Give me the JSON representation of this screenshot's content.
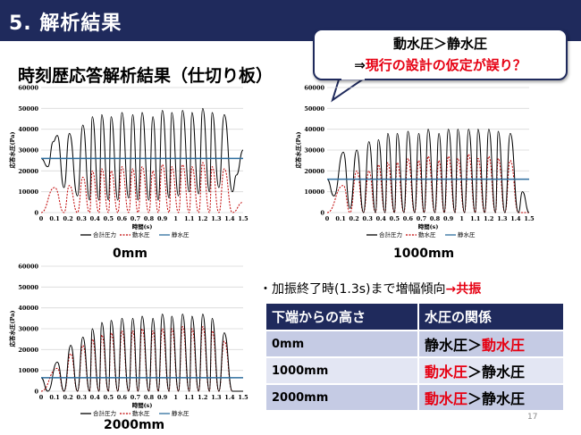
{
  "header": {
    "title": "5. 解析結果"
  },
  "subtitle": "時刻歴応答解析結果（仕切り板）",
  "callout": {
    "line1": "動水圧＞静水圧",
    "line2_arrow": "⇒",
    "line2_text": "現行の設計の仮定が誤り？"
  },
  "captions": [
    "0mm",
    "1000mm",
    "2000mm"
  ],
  "bullet": {
    "prefix": "・加振終了時(1.3s)まで増幅傾向",
    "suffix": "→共振"
  },
  "table": {
    "headers": [
      "下端からの高さ",
      "水圧の関係"
    ],
    "rows": [
      {
        "height": "0mm",
        "relation_a": "静水圧",
        "sep": "＞",
        "relation_b": "動水圧",
        "red_side": "b"
      },
      {
        "height": "1000mm",
        "relation_a": "動水圧",
        "sep": "＞",
        "relation_b": "静水圧",
        "red_side": "a"
      },
      {
        "height": "2000mm",
        "relation_a": "動水圧",
        "sep": "＞",
        "relation_b": "静水圧",
        "red_side": "a"
      }
    ]
  },
  "page_number": "17",
  "colors": {
    "total": "#000000",
    "dynamic": "#c00000",
    "static": "#2e6e9e",
    "header": "#1f2a5c"
  },
  "chart_data": [
    {
      "type": "line",
      "caption": "0mm",
      "xlabel": "時間(s)",
      "ylabel": "応答水圧(Pa)",
      "xlim": [
        0,
        1.5
      ],
      "ylim": [
        0,
        60000
      ],
      "xticks": [
        "0",
        "0.1",
        "0.2",
        "0.3",
        "0.4",
        "0.5",
        "0.6",
        "0.7",
        "0.8",
        "0.9",
        "1",
        "1.1",
        "1.2",
        "1.3",
        "1.4",
        "1.5"
      ],
      "yticks": [
        "0",
        "10000",
        "20000",
        "30000",
        "40000",
        "50000",
        "60000"
      ],
      "legend": [
        "合計圧力",
        "動水圧",
        "静水圧"
      ],
      "static": 26000,
      "total_peaks": [
        [
          0,
          26000
        ],
        [
          0.05,
          22000
        ],
        [
          0.09,
          34000
        ],
        [
          0.12,
          37000
        ],
        [
          0.17,
          12000
        ],
        [
          0.21,
          38000
        ],
        [
          0.27,
          8000
        ],
        [
          0.31,
          42000
        ],
        [
          0.36,
          6000
        ],
        [
          0.38,
          46000
        ],
        [
          0.43,
          6000
        ],
        [
          0.45,
          47000
        ],
        [
          0.5,
          6000
        ],
        [
          0.52,
          46000
        ],
        [
          0.57,
          6000
        ],
        [
          0.6,
          48000
        ],
        [
          0.65,
          7000
        ],
        [
          0.68,
          47000
        ],
        [
          0.72,
          6000
        ],
        [
          0.75,
          48000
        ],
        [
          0.8,
          6000
        ],
        [
          0.83,
          46000
        ],
        [
          0.87,
          6000
        ],
        [
          0.9,
          49000
        ],
        [
          0.95,
          7000
        ],
        [
          0.97,
          48000
        ],
        [
          1.02,
          8000
        ],
        [
          1.05,
          49000
        ],
        [
          1.1,
          10000
        ],
        [
          1.12,
          48000
        ],
        [
          1.17,
          9000
        ],
        [
          1.2,
          50000
        ],
        [
          1.25,
          10000
        ],
        [
          1.27,
          48000
        ],
        [
          1.32,
          12000
        ],
        [
          1.36,
          47000
        ],
        [
          1.42,
          10000
        ],
        [
          1.45,
          18000
        ],
        [
          1.5,
          30000
        ]
      ],
      "dynamic_peaks": [
        [
          0,
          0
        ],
        [
          0.1,
          12000
        ],
        [
          0.17,
          0
        ],
        [
          0.21,
          13000
        ],
        [
          0.27,
          0
        ],
        [
          0.31,
          17000
        ],
        [
          0.36,
          0
        ],
        [
          0.38,
          20000
        ],
        [
          0.43,
          0
        ],
        [
          0.45,
          21000
        ],
        [
          0.5,
          0
        ],
        [
          0.52,
          20000
        ],
        [
          0.57,
          0
        ],
        [
          0.6,
          22000
        ],
        [
          0.65,
          0
        ],
        [
          0.68,
          21000
        ],
        [
          0.72,
          0
        ],
        [
          0.75,
          22000
        ],
        [
          0.8,
          0
        ],
        [
          0.83,
          20000
        ],
        [
          0.87,
          0
        ],
        [
          0.9,
          23000
        ],
        [
          0.95,
          0
        ],
        [
          0.97,
          22000
        ],
        [
          1.02,
          0
        ],
        [
          1.05,
          23000
        ],
        [
          1.1,
          0
        ],
        [
          1.12,
          22000
        ],
        [
          1.17,
          0
        ],
        [
          1.2,
          24000
        ],
        [
          1.25,
          0
        ],
        [
          1.27,
          22000
        ],
        [
          1.32,
          0
        ],
        [
          1.36,
          21000
        ],
        [
          1.42,
          0
        ],
        [
          1.5,
          5000
        ]
      ]
    },
    {
      "type": "line",
      "caption": "1000mm",
      "xlabel": "時間(s)",
      "ylabel": "応答水圧(Pa)",
      "xlim": [
        0,
        1.5
      ],
      "ylim": [
        0,
        60000
      ],
      "xticks": [
        "0",
        "0.1",
        "0.2",
        "0.3",
        "0.4",
        "0.5",
        "0.6",
        "0.7",
        "0.8",
        "0.9",
        "1",
        "1.1",
        "1.2",
        "1.3",
        "1.4",
        "1.5"
      ],
      "yticks": [
        "0",
        "10000",
        "20000",
        "30000",
        "40000",
        "50000",
        "60000"
      ],
      "legend": [
        "合計圧力",
        "動水圧",
        "静水圧"
      ],
      "static": 16000,
      "total_peaks": [
        [
          0,
          16000
        ],
        [
          0.05,
          8000
        ],
        [
          0.12,
          29000
        ],
        [
          0.17,
          2000
        ],
        [
          0.22,
          30000
        ],
        [
          0.27,
          0
        ],
        [
          0.31,
          34000
        ],
        [
          0.36,
          0
        ],
        [
          0.38,
          35000
        ],
        [
          0.43,
          0
        ],
        [
          0.45,
          38000
        ],
        [
          0.5,
          0
        ],
        [
          0.52,
          38000
        ],
        [
          0.57,
          0
        ],
        [
          0.6,
          39000
        ],
        [
          0.65,
          0
        ],
        [
          0.68,
          38000
        ],
        [
          0.72,
          0
        ],
        [
          0.75,
          40000
        ],
        [
          0.8,
          0
        ],
        [
          0.83,
          38000
        ],
        [
          0.87,
          0
        ],
        [
          0.9,
          40000
        ],
        [
          0.95,
          0
        ],
        [
          0.97,
          40000
        ],
        [
          1.02,
          0
        ],
        [
          1.05,
          40000
        ],
        [
          1.1,
          0
        ],
        [
          1.12,
          40000
        ],
        [
          1.17,
          0
        ],
        [
          1.2,
          40000
        ],
        [
          1.25,
          0
        ],
        [
          1.27,
          39000
        ],
        [
          1.32,
          0
        ],
        [
          1.36,
          38000
        ],
        [
          1.42,
          0
        ],
        [
          1.45,
          10000
        ],
        [
          1.5,
          0
        ]
      ],
      "dynamic_peaks": [
        [
          0,
          0
        ],
        [
          0.12,
          13000
        ],
        [
          0.17,
          0
        ],
        [
          0.22,
          20000
        ],
        [
          0.27,
          0
        ],
        [
          0.31,
          20000
        ],
        [
          0.36,
          0
        ],
        [
          0.38,
          23000
        ],
        [
          0.43,
          0
        ],
        [
          0.45,
          24000
        ],
        [
          0.5,
          0
        ],
        [
          0.52,
          24000
        ],
        [
          0.57,
          0
        ],
        [
          0.6,
          26000
        ],
        [
          0.65,
          0
        ],
        [
          0.68,
          25000
        ],
        [
          0.72,
          0
        ],
        [
          0.75,
          27000
        ],
        [
          0.8,
          0
        ],
        [
          0.83,
          25000
        ],
        [
          0.87,
          0
        ],
        [
          0.9,
          27000
        ],
        [
          0.95,
          0
        ],
        [
          0.97,
          26000
        ],
        [
          1.02,
          0
        ],
        [
          1.05,
          28000
        ],
        [
          1.1,
          0
        ],
        [
          1.12,
          26000
        ],
        [
          1.17,
          0
        ],
        [
          1.2,
          27000
        ],
        [
          1.25,
          0
        ],
        [
          1.27,
          26000
        ],
        [
          1.32,
          0
        ],
        [
          1.36,
          25000
        ],
        [
          1.42,
          0
        ],
        [
          1.5,
          0
        ]
      ]
    },
    {
      "type": "line",
      "caption": "2000mm",
      "xlabel": "時間(s)",
      "ylabel": "応答水圧(Pa)",
      "xlim": [
        0,
        1.5
      ],
      "ylim": [
        0,
        60000
      ],
      "xticks": [
        "0",
        "0.1",
        "0.2",
        "0.3",
        "0.4",
        "0.5",
        "0.6",
        "0.7",
        "0.8",
        "0.9",
        "1",
        "1.1",
        "1.2",
        "1.3",
        "1.4",
        "1.5"
      ],
      "yticks": [
        "0",
        "10000",
        "20000",
        "30000",
        "40000",
        "50000",
        "60000"
      ],
      "legend": [
        "合計圧力",
        "動水圧",
        "静水圧"
      ],
      "static": 6500,
      "total_peaks": [
        [
          0,
          6500
        ],
        [
          0.05,
          0
        ],
        [
          0.12,
          14000
        ],
        [
          0.17,
          0
        ],
        [
          0.22,
          22000
        ],
        [
          0.27,
          0
        ],
        [
          0.31,
          26000
        ],
        [
          0.36,
          0
        ],
        [
          0.38,
          30000
        ],
        [
          0.43,
          0
        ],
        [
          0.45,
          33000
        ],
        [
          0.5,
          0
        ],
        [
          0.52,
          34000
        ],
        [
          0.57,
          0
        ],
        [
          0.6,
          35000
        ],
        [
          0.65,
          0
        ],
        [
          0.68,
          35000
        ],
        [
          0.72,
          0
        ],
        [
          0.75,
          36000
        ],
        [
          0.8,
          0
        ],
        [
          0.83,
          35000
        ],
        [
          0.87,
          0
        ],
        [
          0.9,
          37000
        ],
        [
          0.95,
          0
        ],
        [
          0.97,
          36000
        ],
        [
          1.02,
          0
        ],
        [
          1.05,
          37000
        ],
        [
          1.1,
          0
        ],
        [
          1.12,
          36000
        ],
        [
          1.17,
          0
        ],
        [
          1.2,
          37000
        ],
        [
          1.25,
          0
        ],
        [
          1.27,
          35000
        ],
        [
          1.32,
          0
        ],
        [
          1.36,
          28000
        ],
        [
          1.42,
          0
        ],
        [
          1.5,
          0
        ]
      ],
      "dynamic_peaks": [
        [
          0,
          0
        ],
        [
          0.12,
          11000
        ],
        [
          0.17,
          0
        ],
        [
          0.22,
          18000
        ],
        [
          0.27,
          0
        ],
        [
          0.31,
          22000
        ],
        [
          0.36,
          0
        ],
        [
          0.38,
          25000
        ],
        [
          0.43,
          0
        ],
        [
          0.45,
          27000
        ],
        [
          0.5,
          0
        ],
        [
          0.52,
          28000
        ],
        [
          0.57,
          0
        ],
        [
          0.6,
          29000
        ],
        [
          0.65,
          0
        ],
        [
          0.68,
          29000
        ],
        [
          0.72,
          0
        ],
        [
          0.75,
          30000
        ],
        [
          0.8,
          0
        ],
        [
          0.83,
          29000
        ],
        [
          0.87,
          0
        ],
        [
          0.9,
          30000
        ],
        [
          0.95,
          0
        ],
        [
          0.97,
          30000
        ],
        [
          1.02,
          0
        ],
        [
          1.05,
          31000
        ],
        [
          1.1,
          0
        ],
        [
          1.12,
          30000
        ],
        [
          1.17,
          0
        ],
        [
          1.2,
          31000
        ],
        [
          1.25,
          0
        ],
        [
          1.27,
          29000
        ],
        [
          1.32,
          0
        ],
        [
          1.36,
          24000
        ],
        [
          1.42,
          0
        ],
        [
          1.5,
          0
        ]
      ]
    }
  ]
}
